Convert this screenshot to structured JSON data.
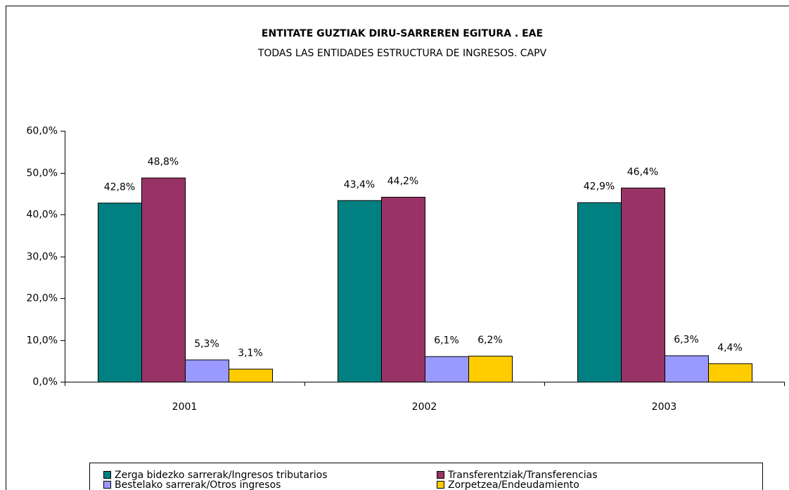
{
  "chart_data": {
    "type": "bar",
    "title": "ENTITATE GUZTIAK DIRU-SARREREN EGITURA . EAE",
    "subtitle": "TODAS LAS ENTIDADES ESTRUCTURA DE INGRESOS. CAPV",
    "categories": [
      "2001",
      "2002",
      "2003"
    ],
    "series": [
      {
        "name": "Zerga bidezko sarrerak/Ingresos tributarios",
        "color": "#008080",
        "values": [
          42.8,
          43.4,
          42.9
        ],
        "value_labels": [
          "42,8%",
          "43,4%",
          "42,9%"
        ]
      },
      {
        "name": "Transferentziak/Transferencias",
        "color": "#993366",
        "values": [
          48.8,
          44.2,
          46.4
        ],
        "value_labels": [
          "48,8%",
          "44,2%",
          "46,4%"
        ]
      },
      {
        "name": "Bestelako sarrerak/Otros ingresos",
        "color": "#9999ff",
        "values": [
          5.3,
          6.1,
          6.3
        ],
        "value_labels": [
          "5,3%",
          "6,1%",
          "6,3%"
        ]
      },
      {
        "name": "Zorpetzea/Endeudamiento",
        "color": "#ffcc00",
        "values": [
          3.1,
          6.2,
          4.4
        ],
        "value_labels": [
          "3,1%",
          "6,2%",
          "4,4%"
        ]
      }
    ],
    "ylim": [
      0,
      60
    ],
    "yticks": [
      {
        "value": 0,
        "label": "0,0%"
      },
      {
        "value": 10,
        "label": "10,0%"
      },
      {
        "value": 20,
        "label": "20,0%"
      },
      {
        "value": 30,
        "label": "30,0%"
      },
      {
        "value": 40,
        "label": "40,0%"
      },
      {
        "value": 50,
        "label": "50,0%"
      },
      {
        "value": 60,
        "label": "60,0%"
      }
    ],
    "legend": "bottom"
  }
}
